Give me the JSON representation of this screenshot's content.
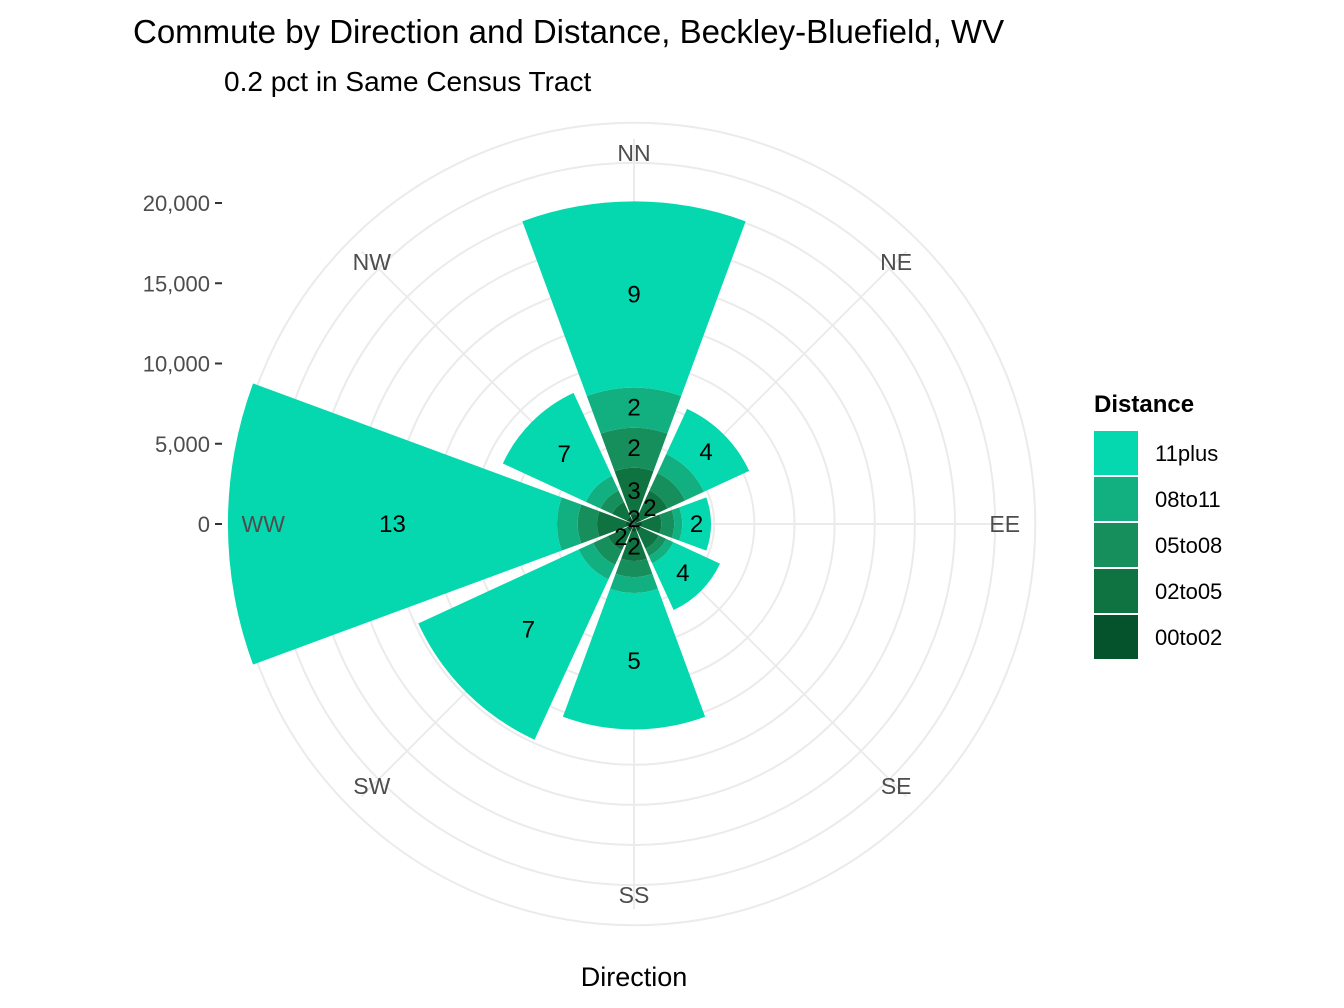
{
  "chart_data": {
    "type": "polar-stacked-bar",
    "title": "Commute by Direction and Distance, Beckley-Bluefield, WV",
    "subtitle": "0.2 pct in Same Census Tract",
    "xlabel": "Direction",
    "ylabel": "",
    "ylim": [
      0,
      20000
    ],
    "y_ticks": [
      0,
      5000,
      10000,
      15000,
      20000
    ],
    "y_tick_labels": [
      "0",
      "5,000",
      "10,000",
      "15,000",
      "20,000"
    ],
    "grid": true,
    "legend": {
      "title": "Distance",
      "placement": "right",
      "entries": [
        "11plus",
        "08to11",
        "05to08",
        "02to05",
        "00to02"
      ]
    },
    "categories": [
      "NN",
      "NE",
      "EE",
      "SE",
      "SS",
      "SW",
      "WW",
      "NW"
    ],
    "series": [
      {
        "name": "00to02",
        "color": "#04532c",
        "values": [
          600,
          500,
          500,
          500,
          500,
          500,
          500,
          500
        ]
      },
      {
        "name": "02to05",
        "color": "#0f7341",
        "values": [
          2900,
          1800,
          1200,
          1200,
          1800,
          1300,
          1800,
          1000
        ]
      },
      {
        "name": "05to08",
        "color": "#178f5c",
        "values": [
          2500,
          1200,
          800,
          500,
          1000,
          1000,
          1200,
          800
        ]
      },
      {
        "name": "08to11",
        "color": "#12b080",
        "values": [
          2500,
          1300,
          500,
          500,
          1000,
          1000,
          1300,
          1000
        ]
      },
      {
        "name": "11plus",
        "color": "#05d8ae",
        "values": [
          11600,
          3100,
          1800,
          3200,
          8500,
          11000,
          20500,
          5700
        ]
      }
    ],
    "data_labels": [
      {
        "direction": "NN",
        "series": "00to02",
        "label": "2"
      },
      {
        "direction": "NN",
        "series": "02to05",
        "label": "3"
      },
      {
        "direction": "NN",
        "series": "05to08",
        "label": "2"
      },
      {
        "direction": "NN",
        "series": "08to11",
        "label": "2"
      },
      {
        "direction": "NN",
        "series": "11plus",
        "label": "9"
      },
      {
        "direction": "NE",
        "series": "02to05",
        "label": "2"
      },
      {
        "direction": "NE",
        "series": "11plus",
        "label": "4"
      },
      {
        "direction": "EE",
        "series": "11plus",
        "label": "2"
      },
      {
        "direction": "SE",
        "series": "11plus",
        "label": "4"
      },
      {
        "direction": "SS",
        "series": "02to05",
        "label": "2"
      },
      {
        "direction": "SS",
        "series": "11plus",
        "label": "5"
      },
      {
        "direction": "SW",
        "series": "02to05",
        "label": "2"
      },
      {
        "direction": "SW",
        "series": "11plus",
        "label": "7"
      },
      {
        "direction": "WW",
        "series": "11plus",
        "label": "13"
      },
      {
        "direction": "NW",
        "series": "11plus",
        "label": "7"
      }
    ]
  }
}
